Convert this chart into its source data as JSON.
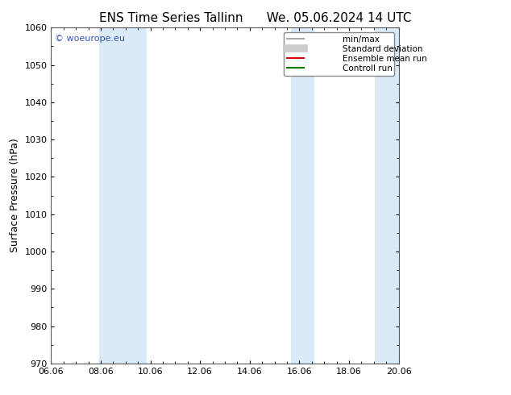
{
  "title_left": "ENS Time Series Tallinn",
  "title_right": "We. 05.06.2024 14 UTC",
  "ylabel": "Surface Pressure (hPa)",
  "ylim": [
    970,
    1060
  ],
  "yticks": [
    970,
    980,
    990,
    1000,
    1010,
    1020,
    1030,
    1040,
    1050,
    1060
  ],
  "xtick_labels": [
    "06.06",
    "08.06",
    "10.06",
    "12.06",
    "14.06",
    "16.06",
    "18.06",
    "20.06"
  ],
  "xmin": 0,
  "xmax": 14.5,
  "shaded_bands": [
    {
      "xstart": 2.0,
      "xend": 4.0
    },
    {
      "xstart": 10.0,
      "xend": 11.0
    },
    {
      "xstart": 13.5,
      "xend": 14.5
    }
  ],
  "shade_color": "#daeaf7",
  "background_color": "#ffffff",
  "watermark_text": "© woeurope.eu",
  "watermark_color": "#3355bb",
  "legend_items": [
    {
      "label": "min/max",
      "color": "#aaaaaa",
      "lw": 1.5
    },
    {
      "label": "Standard deviation",
      "color": "#cccccc",
      "lw": 7
    },
    {
      "label": "Ensemble mean run",
      "color": "#dd0000",
      "lw": 1.5
    },
    {
      "label": "Controll run",
      "color": "#007700",
      "lw": 1.5
    }
  ],
  "title_fontsize": 11,
  "ylabel_fontsize": 9,
  "tick_fontsize": 8,
  "watermark_fontsize": 8,
  "legend_fontsize": 7.5
}
